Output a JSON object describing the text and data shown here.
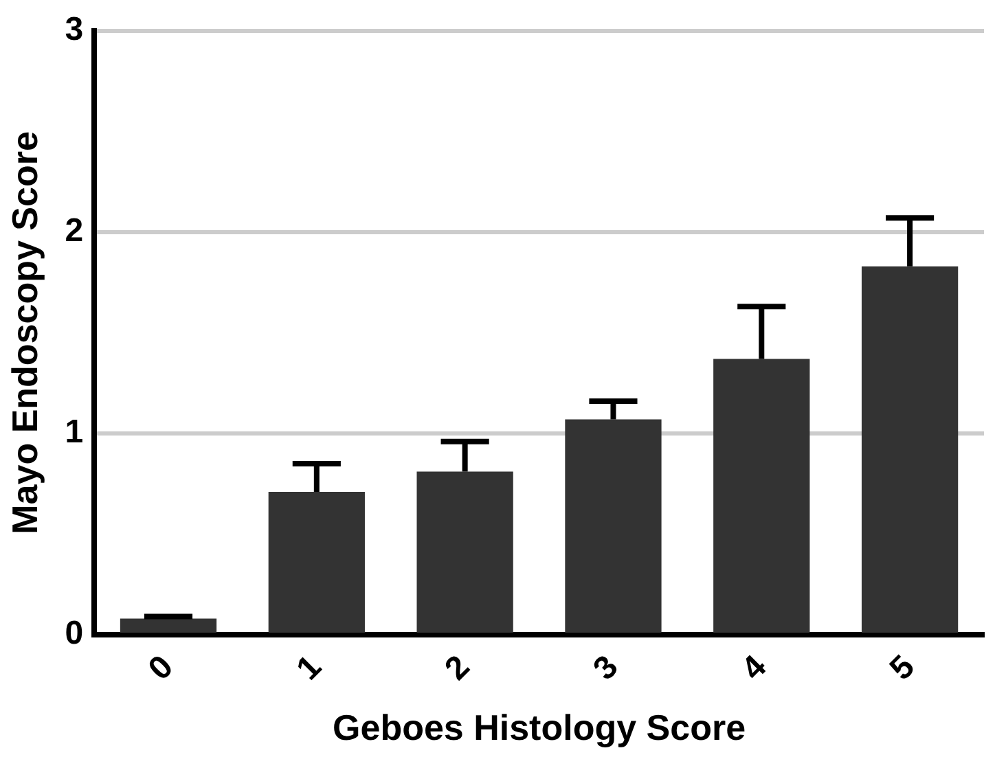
{
  "chart_data": {
    "type": "bar",
    "xlabel": "Geboes Histology Score",
    "ylabel": "Mayo Endoscopy Score",
    "categories": [
      "0",
      "1",
      "2",
      "3",
      "4",
      "5"
    ],
    "values": [
      0.08,
      0.71,
      0.81,
      1.07,
      1.37,
      1.83
    ],
    "errors": [
      [
        0.08,
        0.09
      ],
      [
        0.71,
        0.85
      ],
      [
        0.81,
        0.96
      ],
      [
        1.07,
        1.16
      ],
      [
        1.37,
        1.63
      ],
      [
        1.83,
        2.07
      ]
    ],
    "color": "#333333",
    "ylim": [
      0,
      3
    ],
    "yticks": [
      0,
      1,
      2,
      3
    ],
    "grid": "y",
    "legend": false
  }
}
